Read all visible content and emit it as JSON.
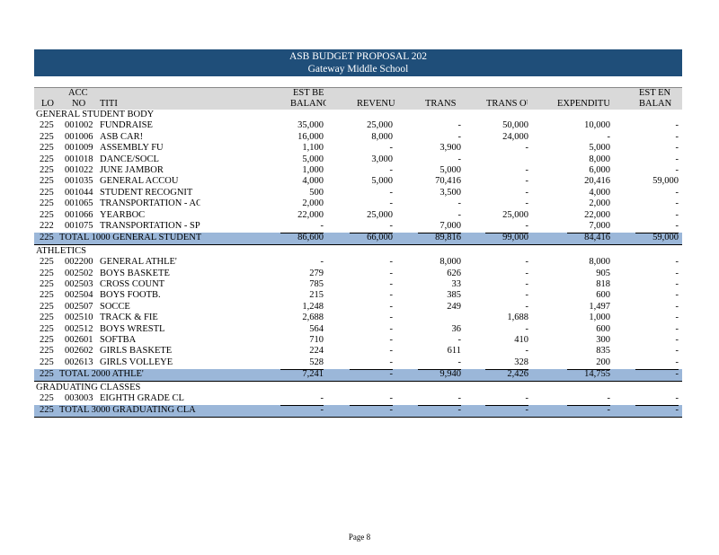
{
  "banner": {
    "title": "ASB BUDGET PROPOSAL 202",
    "school": "Gateway Middle School"
  },
  "columns": {
    "loc": "LO(",
    "acct_top": "ACC",
    "acct": "NO",
    "title": "TITI",
    "est_beg_top": "EST BE",
    "est_beg": "BALANC",
    "revenue": "REVENU",
    "trans_in": "TRANS I",
    "trans_out": "TRANS OU",
    "expend": "EXPENDITU",
    "est_end_top": "EST EN",
    "est_end": "BALANC"
  },
  "sections": [
    {
      "name": "GENERAL STUDENT BODY",
      "rows": [
        [
          "225",
          "001002",
          "FUNDRAISE",
          "35,000",
          "25,000",
          "-",
          "50,000",
          "10,000",
          "-"
        ],
        [
          "225",
          "001006",
          "ASB CAR!",
          "16,000",
          "8,000",
          "-",
          "24,000",
          "-",
          "-"
        ],
        [
          "225",
          "001009",
          "ASSEMBLY FU",
          "1,100",
          "-",
          "3,900",
          "-",
          "5,000",
          "-"
        ],
        [
          "225",
          "001018",
          "DANCE/SOCL",
          "5,000",
          "3,000",
          "-",
          "",
          "8,000",
          "-"
        ],
        [
          "225",
          "001022",
          "JUNE JAMBOR",
          "1,000",
          "-",
          "5,000",
          "-",
          "6,000",
          "-"
        ],
        [
          "225",
          "001035",
          "GENERAL ACCOU",
          "4,000",
          "5,000",
          "70,416",
          "-",
          "20,416",
          "59,000"
        ],
        [
          "225",
          "001044",
          "STUDENT RECOGNIT",
          "500",
          "-",
          "3,500",
          "-",
          "4,000",
          "-"
        ],
        [
          "225",
          "001065",
          "TRANSPORTATION - ACTI",
          "2,000",
          "-",
          "-",
          "-",
          "2,000",
          "-"
        ],
        [
          "225",
          "001066",
          "YEARBOC",
          "22,000",
          "25,000",
          "-",
          "25,000",
          "22,000",
          "-"
        ],
        [
          "222",
          "001075",
          "TRANSPORTATION - SP(",
          "-",
          "-",
          "7,000",
          "-",
          "7,000",
          "-"
        ]
      ],
      "total": [
        "225",
        "TOTAL 1000 GENERAL STUDENT",
        "86,600",
        "66,000",
        "89,816",
        "99,000",
        "84,416",
        "59,000"
      ]
    },
    {
      "name": "ATHLETICS",
      "rows": [
        [
          "225",
          "002200",
          "GENERAL ATHLE'",
          "-",
          "-",
          "8,000",
          "-",
          "8,000",
          "-"
        ],
        [
          "225",
          "002502",
          "BOYS BASKETE",
          "279",
          "-",
          "626",
          "-",
          "905",
          "-"
        ],
        [
          "225",
          "002503",
          "CROSS COUNT",
          "785",
          "-",
          "33",
          "-",
          "818",
          "-"
        ],
        [
          "225",
          "002504",
          "BOYS FOOTB.",
          "215",
          "-",
          "385",
          "-",
          "600",
          "-"
        ],
        [
          "225",
          "002507",
          "SOCCE",
          "1,248",
          "-",
          "249",
          "-",
          "1,497",
          "-"
        ],
        [
          "225",
          "002510",
          "TRACK & FIE",
          "2,688",
          "-",
          "",
          "1,688",
          "1,000",
          "-"
        ],
        [
          "225",
          "002512",
          "BOYS WRESTL",
          "564",
          "-",
          "36",
          "-",
          "600",
          "-"
        ],
        [
          "225",
          "002601",
          "SOFTBA",
          "710",
          "-",
          "-",
          "410",
          "300",
          "-"
        ],
        [
          "225",
          "002602",
          "GIRLS BASKETE",
          "224",
          "-",
          "611",
          "-",
          "835",
          "-"
        ],
        [
          "225",
          "002613",
          "GIRLS VOLLEYE",
          "528",
          "-",
          "-",
          "328",
          "200",
          "-"
        ]
      ],
      "total": [
        "225",
        "TOTAL 2000 ATHLE'",
        "7,241",
        "-",
        "9,940",
        "2,426",
        "14,755",
        "-"
      ]
    },
    {
      "name": "GRADUATING CLASSES",
      "rows": [
        [
          "225",
          "003003",
          "EIGHTH GRADE CL",
          "-",
          "-",
          "-",
          "-",
          "-",
          "-"
        ]
      ],
      "total": [
        "225",
        "TOTAL 3000 GRADUATING CLA",
        "-",
        "-",
        "-",
        "-",
        "-",
        "-"
      ]
    }
  ],
  "footer": {
    "page": "Page 8"
  }
}
